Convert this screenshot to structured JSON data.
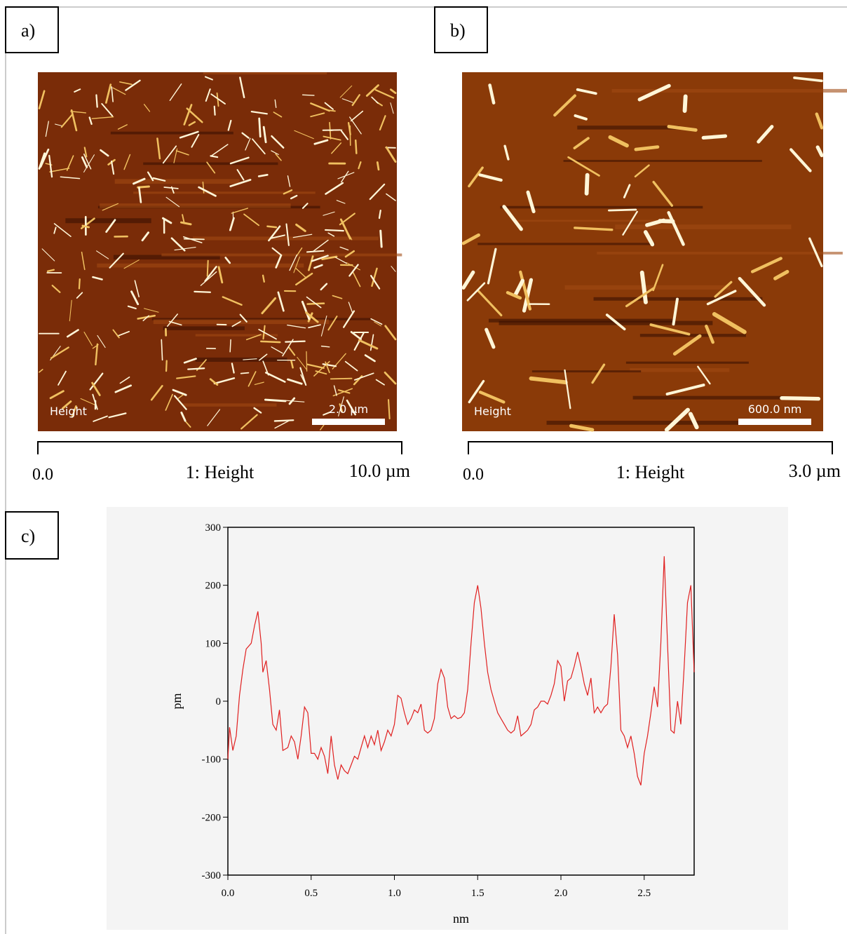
{
  "panels": [
    {
      "label": "a)",
      "image_label": "Height",
      "scale_bar": "2.0 µm",
      "colorbar": {
        "min": "0.0",
        "title": "1: Height",
        "max": "10.0 µm"
      }
    },
    {
      "label": "b)",
      "image_label": "Height",
      "scale_bar": "600.0 nm",
      "colorbar": {
        "min": "0.0",
        "title": "1: Height",
        "max": "3.0 µm"
      }
    }
  ],
  "profile_label": "c)",
  "chart_data": {
    "type": "line",
    "x_label": "nm",
    "y_label": "pm",
    "xlim": [
      0,
      2.8
    ],
    "ylim": [
      -300,
      300
    ],
    "xticks": [
      {
        "value": 0,
        "label": "0.0"
      },
      {
        "value": 0.5,
        "label": "0.5"
      },
      {
        "value": 1,
        "label": "1.0"
      },
      {
        "value": 1.5,
        "label": "1.5"
      },
      {
        "value": 2,
        "label": "2.0"
      },
      {
        "value": 2.5,
        "label": "2.5"
      }
    ],
    "yticks": [
      -300,
      -200,
      -100,
      0,
      100,
      200,
      300
    ],
    "series": [
      {
        "color": "#e02020",
        "x": [
          0,
          0.01,
          0.03,
          0.05,
          0.07,
          0.09,
          0.11,
          0.14,
          0.16,
          0.18,
          0.2,
          0.21,
          0.23,
          0.25,
          0.27,
          0.29,
          0.31,
          0.33,
          0.36,
          0.38,
          0.4,
          0.42,
          0.44,
          0.46,
          0.48,
          0.5,
          0.52,
          0.54,
          0.56,
          0.58,
          0.6,
          0.62,
          0.64,
          0.66,
          0.68,
          0.7,
          0.72,
          0.74,
          0.76,
          0.78,
          0.8,
          0.82,
          0.84,
          0.86,
          0.88,
          0.9,
          0.92,
          0.94,
          0.96,
          0.98,
          1,
          1.02,
          1.04,
          1.06,
          1.08,
          1.1,
          1.12,
          1.14,
          1.16,
          1.18,
          1.2,
          1.22,
          1.24,
          1.26,
          1.28,
          1.3,
          1.32,
          1.34,
          1.36,
          1.38,
          1.4,
          1.42,
          1.44,
          1.46,
          1.48,
          1.5,
          1.52,
          1.54,
          1.56,
          1.58,
          1.6,
          1.62,
          1.64,
          1.66,
          1.68,
          1.7,
          1.72,
          1.74,
          1.76,
          1.78,
          1.8,
          1.82,
          1.84,
          1.86,
          1.88,
          1.9,
          1.92,
          1.94,
          1.96,
          1.98,
          2,
          2.02,
          2.04,
          2.06,
          2.08,
          2.1,
          2.12,
          2.14,
          2.16,
          2.18,
          2.2,
          2.22,
          2.24,
          2.26,
          2.28,
          2.3,
          2.32,
          2.34,
          2.36,
          2.38,
          2.4,
          2.42,
          2.44,
          2.46,
          2.48,
          2.5,
          2.52,
          2.54,
          2.56,
          2.58,
          2.6,
          2.62,
          2.64,
          2.66,
          2.68,
          2.7,
          2.72,
          2.74,
          2.76,
          2.78,
          2.8
        ],
        "values": [
          -100,
          -45,
          -85,
          -60,
          10,
          55,
          90,
          100,
          130,
          155,
          100,
          50,
          70,
          20,
          -40,
          -50,
          -15,
          -85,
          -80,
          -60,
          -70,
          -100,
          -60,
          -10,
          -20,
          -90,
          -90,
          -100,
          -80,
          -95,
          -125,
          -60,
          -110,
          -135,
          -110,
          -120,
          -125,
          -110,
          -95,
          -100,
          -80,
          -60,
          -80,
          -60,
          -75,
          -50,
          -85,
          -70,
          -50,
          -60,
          -40,
          10,
          5,
          -20,
          -40,
          -30,
          -15,
          -20,
          -5,
          -50,
          -55,
          -50,
          -30,
          30,
          55,
          40,
          -10,
          -30,
          -25,
          -30,
          -28,
          -20,
          20,
          100,
          170,
          200,
          160,
          100,
          50,
          20,
          0,
          -20,
          -30,
          -40,
          -50,
          -55,
          -50,
          -25,
          -60,
          -55,
          -50,
          -40,
          -15,
          -10,
          0,
          0,
          -5,
          10,
          30,
          70,
          60,
          0,
          35,
          40,
          60,
          85,
          60,
          30,
          10,
          40,
          -20,
          -10,
          -20,
          -10,
          -5,
          60,
          150,
          80,
          -50,
          -60,
          -80,
          -60,
          -90,
          -130,
          -145,
          -90,
          -60,
          -20,
          25,
          -10,
          100,
          250,
          100,
          -50,
          -55,
          0,
          -40,
          60,
          170,
          200,
          50
        ]
      }
    ]
  }
}
